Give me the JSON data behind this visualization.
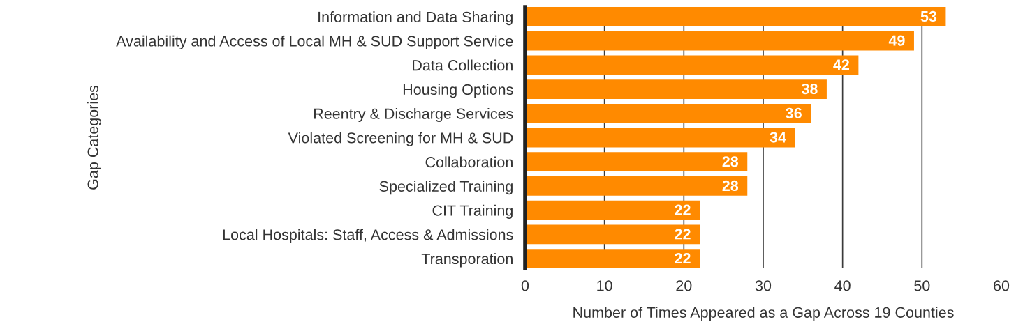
{
  "chart_data": {
    "type": "bar",
    "orientation": "horizontal",
    "xlabel": "Number of Times Appeared as a Gap Across 19 Counties",
    "ylabel": "Gap Categories",
    "categories": [
      "Information and Data Sharing",
      "Availability and Access of Local MH & SUD Support Service",
      "Data Collection",
      "Housing Options",
      "Reentry & Discharge Services",
      "Violated Screening for MH & SUD",
      "Collaboration",
      "Specialized Training",
      "CIT Training",
      "Local Hospitals: Staff, Access & Admissions",
      "Transporation"
    ],
    "values": [
      53,
      49,
      42,
      38,
      36,
      34,
      28,
      28,
      22,
      22,
      22
    ],
    "color": "#ff8a00",
    "xlim": [
      0,
      60
    ],
    "xticks": [
      0,
      10,
      20,
      30,
      40,
      50,
      60
    ],
    "grid": "x",
    "data_labels": true
  }
}
